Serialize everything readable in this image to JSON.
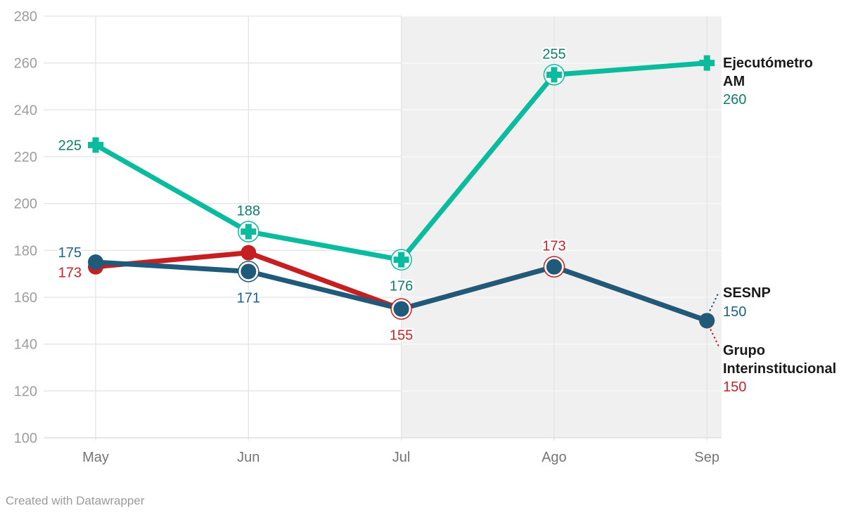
{
  "footer": {
    "credit": "Created with Datawrapper"
  },
  "colors": {
    "background": "#ffffff",
    "shaded_region": "#f0f0f0",
    "gridline": "#e4e4e4",
    "gridline_on_shade": "#fafafa",
    "axis_line": "#dcdcdc",
    "y_tick_label": "#9d9d9d",
    "x_tick_label": "#757575",
    "legend_name": "#1a1a1a",
    "footer_text": "#9b9b9b"
  },
  "chart_data": {
    "type": "line",
    "categories": [
      "May",
      "Jun",
      "Jul",
      "Ago",
      "Sep"
    ],
    "ylim": [
      100,
      280
    ],
    "y_ticks": [
      280,
      260,
      240,
      220,
      200,
      180,
      160,
      140,
      120,
      100
    ],
    "grid": true,
    "legend_position": "right-of-line-ends",
    "shaded_region": {
      "from_category": "Jul",
      "to_category": "Sep",
      "color": "#f0f0f0"
    },
    "series": [
      {
        "name": "Ejecutómetro AM",
        "color": "#0abc9d",
        "label_color": "#0b7f6a",
        "marker": "plus",
        "values": [
          225,
          188,
          176,
          255,
          260
        ],
        "ring_points": [
          1,
          2,
          3
        ],
        "point_labels": [
          {
            "idx": 0,
            "text": "225",
            "pos": "left"
          },
          {
            "idx": 1,
            "text": "188",
            "pos": "above"
          },
          {
            "idx": 2,
            "text": "176",
            "pos": "below"
          },
          {
            "idx": 3,
            "text": "255",
            "pos": "above"
          }
        ],
        "legend": {
          "name_lines": [
            "Ejecutómetro",
            "AM"
          ],
          "value": "260"
        }
      },
      {
        "name": "Grupo Interinstitucional",
        "color": "#c51f22",
        "label_color": "#ce2127",
        "marker": "circle",
        "values": [
          173,
          179,
          155,
          173,
          150
        ],
        "ring_points": [
          2,
          3
        ],
        "point_labels": [
          {
            "idx": 0,
            "text": "173",
            "pos": "left-down"
          },
          {
            "idx": 2,
            "text": "155",
            "pos": "below"
          },
          {
            "idx": 3,
            "text": "173",
            "pos": "above"
          }
        ],
        "legend": {
          "name_lines": [
            "Grupo",
            "Interinstitucional"
          ],
          "value": "150"
        }
      },
      {
        "name": "SESNP",
        "color": "#1f5a7a",
        "label_color": "#1d6285",
        "marker": "circle",
        "values": [
          175,
          171,
          155,
          173,
          150
        ],
        "ring_points": [
          1
        ],
        "point_labels": [
          {
            "idx": 0,
            "text": "175",
            "pos": "left-up"
          },
          {
            "idx": 1,
            "text": "171",
            "pos": "below"
          }
        ],
        "legend": {
          "name_lines": [
            "SESNP"
          ],
          "value": "150"
        }
      }
    ]
  }
}
